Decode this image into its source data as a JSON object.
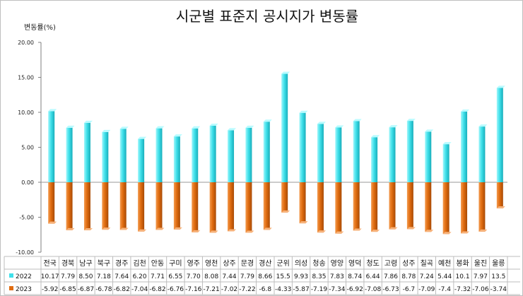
{
  "chart_data": {
    "type": "bar",
    "title": "시군별 표준지 공시지가 변동률",
    "ylabel": "변동률(%)",
    "ylim": [
      -10,
      20
    ],
    "yticks": [
      "20.00",
      "15.00",
      "10.00",
      "5.00",
      "0.00",
      "-5.00",
      "-10.00"
    ],
    "grid": false,
    "legend": "bottom-left table",
    "categories": [
      "전국",
      "경북",
      "남구",
      "북구",
      "경주",
      "김천",
      "안동",
      "구미",
      "영주",
      "영천",
      "상주",
      "문경",
      "경산",
      "군위",
      "의성",
      "청송",
      "영양",
      "영덕",
      "청도",
      "고령",
      "성주",
      "칠곡",
      "예천",
      "봉화",
      "울진",
      "울릉"
    ],
    "series": [
      {
        "name": "2022",
        "color": "#3fe0ea",
        "values": [
          10.17,
          7.79,
          8.5,
          7.18,
          7.64,
          6.2,
          7.71,
          6.55,
          7.7,
          8.08,
          7.44,
          7.79,
          8.66,
          15.5,
          9.93,
          8.35,
          7.83,
          8.74,
          6.44,
          7.86,
          8.78,
          7.24,
          5.44,
          10.1,
          7.97,
          13.5
        ],
        "labels": [
          "10.17",
          "7.79",
          "8.50",
          "7.18",
          "7.64",
          "6.20",
          "7.71",
          "6.55",
          "7.70",
          "8.08",
          "7.44",
          "7.79",
          "8.66",
          "15.5",
          "9.93",
          "8.35",
          "7.83",
          "8.74",
          "6.44",
          "7.86",
          "8.78",
          "7.24",
          "5.44",
          "10.1",
          "7.97",
          "13.5"
        ]
      },
      {
        "name": "2023",
        "color": "#e06c10",
        "values": [
          -5.92,
          -6.85,
          -6.87,
          -6.78,
          -6.82,
          -7.04,
          -6.82,
          -6.76,
          -7.16,
          -7.21,
          -7.02,
          -7.22,
          -6.8,
          -4.33,
          -5.87,
          -7.19,
          -7.34,
          -6.92,
          -7.08,
          -6.73,
          -6.7,
          -7.09,
          -7.4,
          -7.32,
          -7.06,
          -3.74
        ],
        "labels": [
          "-5.92",
          "-6.85",
          "-6.87",
          "-6.78",
          "-6.82",
          "-7.04",
          "-6.82",
          "-6.76",
          "-7.16",
          "-7.21",
          "-7.02",
          "-7.22",
          "-6.8",
          "-4.33",
          "-5.87",
          "-7.19",
          "-7.34",
          "-6.92",
          "-7.08",
          "-6.73",
          "-6.7",
          "-7.09",
          "-7.4",
          "-7.32",
          "-7.06",
          "-3.74"
        ]
      }
    ]
  }
}
